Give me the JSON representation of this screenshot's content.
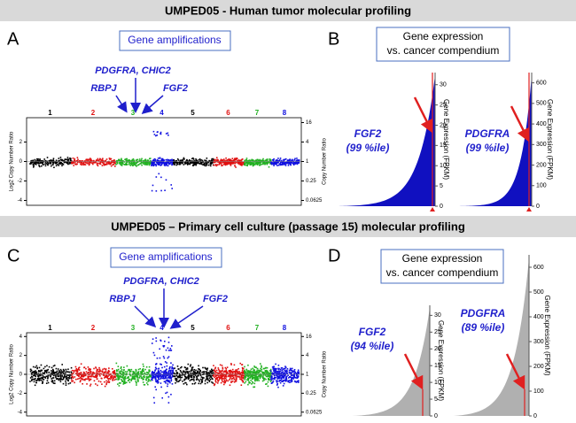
{
  "headers": [
    "UMPED05 - Human tumor molecular profiling",
    "UMPED05 – Primary cell culture (passage 15) molecular profiling"
  ],
  "panels": [
    {
      "label": "A",
      "box": "Gene amplifications",
      "genes": {
        "center": "PDGFRA, CHIC2",
        "left": "RBPJ",
        "right": "FGF2"
      },
      "chromosomes": [
        "1",
        "2",
        "3",
        "4",
        "5",
        "6",
        "7",
        "8"
      ],
      "y_label": "Log2 Copy Number Ratio",
      "ylim": [
        -4.5,
        4.5
      ],
      "y_ticks": [
        2,
        0,
        -2,
        -4
      ],
      "y2_label": "Copy Number Ratio",
      "y2_ticks": [
        16,
        4,
        1,
        0.25,
        0.0625
      ]
    },
    {
      "label": "B",
      "box": [
        "Gene expression",
        "vs. cancer compendium"
      ],
      "charts": [
        {
          "gene": "FGF2",
          "percentile": "(99 %ile)",
          "y_label": "Gene Expression (FPKM)",
          "ylim": [
            0,
            33
          ],
          "y_ticks": [
            0,
            5,
            10,
            15,
            20,
            25,
            30
          ]
        },
        {
          "gene": "PDGFRA",
          "percentile": "(99 %ile)",
          "y_label": "Gene Expression (FPKM)",
          "ylim": [
            0,
            650
          ],
          "y_ticks": [
            0,
            100,
            200,
            300,
            400,
            500,
            600
          ]
        }
      ]
    },
    {
      "label": "C",
      "box": "Gene amplifications",
      "genes": {
        "center": "PDGFRA, CHIC2",
        "left": "RBPJ",
        "right": "FGF2"
      },
      "chromosomes": [
        "1",
        "2",
        "3",
        "4",
        "5",
        "6",
        "7",
        "8"
      ],
      "y_label": "Log2 Copy Number Ratio",
      "ylim": [
        -4.4,
        4.4
      ],
      "y_ticks": [
        4,
        2,
        0,
        -2,
        -4
      ],
      "y2_label": "Copy Number Ratio",
      "y2_ticks": [
        16,
        4,
        1,
        0.25,
        0.0625
      ]
    },
    {
      "label": "D",
      "box": [
        "Gene expression",
        "vs. cancer compendium"
      ],
      "charts": [
        {
          "gene": "FGF2",
          "percentile": "(94 %ile)",
          "y_label": "Gene Expression (FPKM)",
          "ylim": [
            0,
            33
          ],
          "y_ticks": [
            0,
            5,
            10,
            15,
            20,
            25,
            30
          ]
        },
        {
          "gene": "PDGFRA",
          "percentile": "(89 %ile)",
          "y_label": "Gene Expression (FPKM)",
          "ylim": [
            0,
            650
          ],
          "y_ticks": [
            0,
            100,
            200,
            300,
            400,
            500,
            600
          ]
        }
      ]
    }
  ]
}
